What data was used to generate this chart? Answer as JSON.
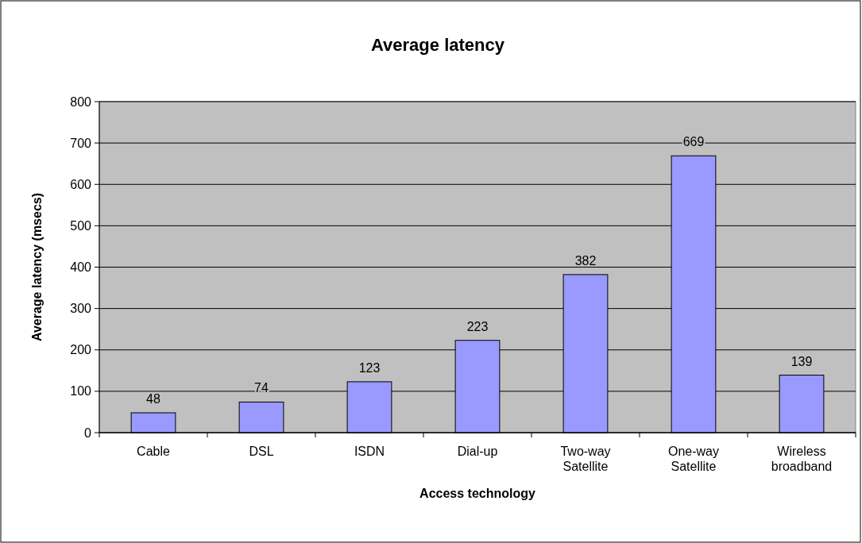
{
  "chart_data": {
    "type": "bar",
    "title": "Average latency",
    "xlabel": "Access technology",
    "ylabel": "Average latency (msecs)",
    "categories": [
      "Cable",
      "DSL",
      "ISDN",
      "Dial-up",
      "Two-way Satellite",
      "One-way Satellite",
      "Wireless broadband"
    ],
    "values": [
      48,
      74,
      123,
      223,
      382,
      669,
      139
    ],
    "color": "#9999ff",
    "ylim": [
      0,
      800
    ],
    "yticks": [
      0,
      100,
      200,
      300,
      400,
      500,
      600,
      700,
      800
    ],
    "grid": "y",
    "data_labels": true
  }
}
